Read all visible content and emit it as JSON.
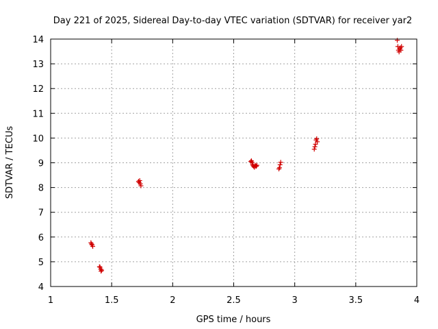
{
  "chart_data": {
    "type": "scatter",
    "title": "Day 221 of 2025, Sidereal Day-to-day VTEC variation (SDTVAR) for receiver yar2",
    "xlabel": "GPS time / hours",
    "ylabel": "SDTVAR / TECUs",
    "xlim": [
      1,
      4
    ],
    "ylim": [
      4,
      14
    ],
    "x_ticks": [
      1,
      1.5,
      2,
      2.5,
      3,
      3.5,
      4
    ],
    "x_tick_labels": [
      "1",
      "1.5",
      "2",
      "2.5",
      "3",
      "3.5",
      "4"
    ],
    "y_ticks": [
      4,
      5,
      6,
      7,
      8,
      9,
      10,
      11,
      12,
      13,
      14
    ],
    "y_tick_labels": [
      "4",
      "5",
      "6",
      "7",
      "8",
      "9",
      "10",
      "11",
      "12",
      "13",
      "14"
    ],
    "grid": true,
    "marker": "+",
    "series": [
      {
        "name": "yar2",
        "color": "#d00000",
        "points": [
          [
            1.33,
            5.77
          ],
          [
            1.335,
            5.72
          ],
          [
            1.34,
            5.68
          ],
          [
            1.345,
            5.62
          ],
          [
            1.4,
            4.8
          ],
          [
            1.405,
            4.78
          ],
          [
            1.41,
            4.7
          ],
          [
            1.413,
            4.62
          ],
          [
            1.418,
            4.66
          ],
          [
            1.72,
            8.25
          ],
          [
            1.725,
            8.2
          ],
          [
            1.73,
            8.28
          ],
          [
            1.735,
            8.15
          ],
          [
            1.74,
            8.07
          ],
          [
            2.64,
            9.05
          ],
          [
            2.645,
            9.08
          ],
          [
            2.65,
            9.02
          ],
          [
            2.655,
            8.92
          ],
          [
            2.66,
            8.88
          ],
          [
            2.665,
            8.85
          ],
          [
            2.67,
            8.82
          ],
          [
            2.675,
            8.9
          ],
          [
            2.68,
            8.87
          ],
          [
            2.685,
            8.86
          ],
          [
            2.69,
            8.9
          ],
          [
            2.87,
            8.75
          ],
          [
            2.875,
            8.8
          ],
          [
            2.88,
            8.92
          ],
          [
            2.885,
            9.02
          ],
          [
            3.16,
            9.55
          ],
          [
            3.165,
            9.65
          ],
          [
            3.17,
            9.75
          ],
          [
            3.175,
            9.92
          ],
          [
            3.18,
            9.97
          ],
          [
            3.185,
            9.85
          ],
          [
            3.84,
            13.95
          ],
          [
            3.845,
            13.7
          ],
          [
            3.85,
            13.55
          ],
          [
            3.855,
            13.48
          ],
          [
            3.86,
            13.6
          ],
          [
            3.865,
            13.65
          ],
          [
            3.87,
            13.55
          ],
          [
            3.875,
            13.7
          ]
        ]
      }
    ]
  }
}
